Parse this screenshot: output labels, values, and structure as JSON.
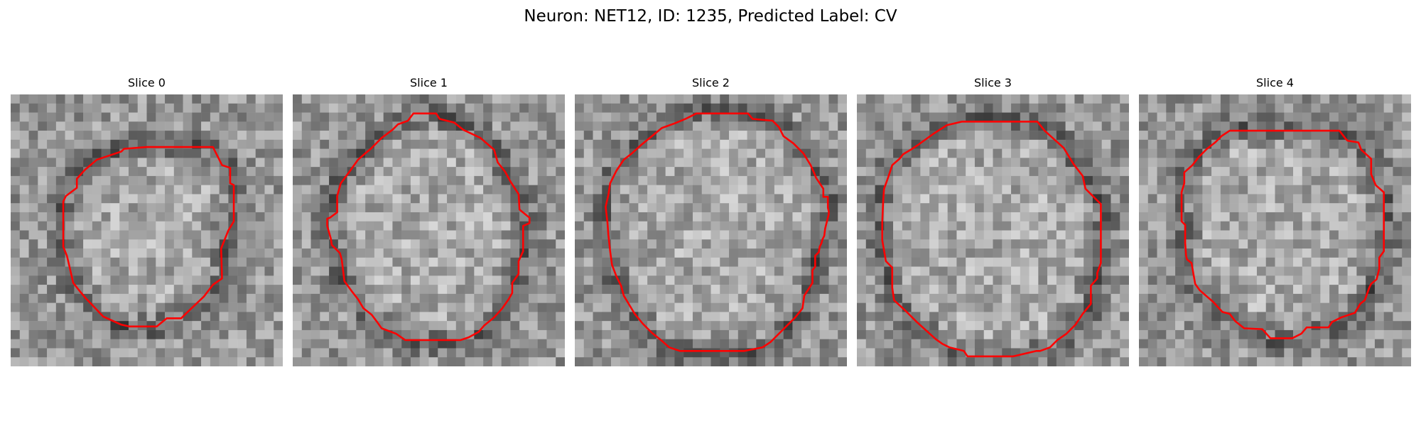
{
  "figure": {
    "title": "Neuron: NET12, ID: 1235, Predicted Label: CV"
  },
  "colors": {
    "contour": "#ff0000",
    "colormap": "gray"
  },
  "image_grid": {
    "rows": 30,
    "cols": 30
  },
  "slices": [
    {
      "title": "Slice 0",
      "contour": [
        [
          15,
          5.8
        ],
        [
          22.3,
          5.8
        ],
        [
          23.3,
          7.8
        ],
        [
          24.2,
          8.1
        ],
        [
          24.2,
          9.8
        ],
        [
          24.6,
          10
        ],
        [
          24.6,
          14
        ],
        [
          24,
          15
        ],
        [
          23.2,
          17
        ],
        [
          23.3,
          20.3
        ],
        [
          22.3,
          21
        ],
        [
          21.3,
          22.3
        ],
        [
          19.3,
          24.2
        ],
        [
          18.8,
          24.7
        ],
        [
          17.2,
          24.7
        ],
        [
          16.1,
          25.6
        ],
        [
          13.1,
          25.6
        ],
        [
          12.2,
          25.4
        ],
        [
          10.2,
          24.5
        ],
        [
          8.2,
          22.4
        ],
        [
          7.7,
          21.8
        ],
        [
          6.9,
          20.8
        ],
        [
          6.3,
          18.2
        ],
        [
          6.2,
          17.8
        ],
        [
          5.8,
          16.8
        ],
        [
          5.8,
          15.2
        ],
        [
          5.8,
          11.8
        ],
        [
          6.1,
          11.2
        ],
        [
          7.3,
          10.3
        ],
        [
          7.3,
          9.3
        ],
        [
          8.2,
          8.3
        ],
        [
          9.5,
          7.2
        ],
        [
          10.7,
          6.8
        ],
        [
          12.2,
          6.3
        ],
        [
          12.5,
          6
        ]
      ]
    },
    {
      "title": "Slice 1",
      "contour": [
        [
          13.3,
          2.1
        ],
        [
          15.8,
          2.1
        ],
        [
          16.2,
          2.7
        ],
        [
          17.8,
          3.1
        ],
        [
          18.8,
          3.9
        ],
        [
          20.7,
          4.8
        ],
        [
          22.2,
          6.1
        ],
        [
          22.6,
          7.5
        ],
        [
          23.4,
          8.5
        ],
        [
          24,
          9.6
        ],
        [
          24.9,
          11
        ],
        [
          25,
          12.7
        ],
        [
          26.1,
          13.6
        ],
        [
          26.1,
          14.2
        ],
        [
          25.4,
          14.5
        ],
        [
          25.4,
          17.3
        ],
        [
          24.9,
          18.4
        ],
        [
          24.9,
          19.8
        ],
        [
          24.2,
          20.8
        ],
        [
          24.2,
          21.9
        ],
        [
          23.8,
          22.6
        ],
        [
          23.1,
          23.6
        ],
        [
          22.2,
          24.6
        ],
        [
          21.1,
          25.5
        ],
        [
          20.5,
          26.2
        ],
        [
          19.4,
          26.8
        ],
        [
          18.5,
          27.1
        ],
        [
          12.4,
          27.1
        ],
        [
          11.4,
          26.4
        ],
        [
          9.8,
          25.8
        ],
        [
          9.3,
          25.1
        ],
        [
          8.7,
          24.3
        ],
        [
          7.8,
          23.6
        ],
        [
          7.2,
          22.6
        ],
        [
          6.5,
          21.7
        ],
        [
          5.7,
          20.6
        ],
        [
          5.4,
          18.2
        ],
        [
          5.2,
          17.5
        ],
        [
          4.3,
          16.6
        ],
        [
          4.2,
          15.9
        ],
        [
          3.8,
          14.5
        ],
        [
          3.8,
          13.7
        ],
        [
          4.1,
          13.6
        ],
        [
          4.9,
          13
        ],
        [
          4.9,
          11.2
        ],
        [
          5.3,
          9.8
        ],
        [
          6.2,
          8.6
        ],
        [
          7.2,
          7.2
        ],
        [
          8,
          6.5
        ],
        [
          8.6,
          6
        ],
        [
          9,
          5.6
        ],
        [
          9.8,
          4.8
        ],
        [
          11,
          3.9
        ],
        [
          11.6,
          3.3
        ],
        [
          12.7,
          2.9
        ]
      ]
    },
    {
      "title": "Slice 2",
      "contour": [
        [
          13.4,
          2.1
        ],
        [
          19.1,
          2.1
        ],
        [
          19.6,
          2.7
        ],
        [
          21.8,
          2.9
        ],
        [
          22.5,
          3.6
        ],
        [
          23,
          4.6
        ],
        [
          24.1,
          5.4
        ],
        [
          25.2,
          6.5
        ],
        [
          26,
          7.8
        ],
        [
          26.4,
          8.7
        ],
        [
          26.6,
          9.2
        ],
        [
          27.4,
          10.4
        ],
        [
          27.4,
          11.3
        ],
        [
          27.9,
          11.3
        ],
        [
          27.9,
          12.5
        ],
        [
          28,
          12.9
        ],
        [
          28,
          13.2
        ],
        [
          27.6,
          14.8
        ],
        [
          27.5,
          15.6
        ],
        [
          27.3,
          16
        ],
        [
          27.2,
          16.4
        ],
        [
          27,
          16.8
        ],
        [
          26.9,
          17.4
        ],
        [
          26.5,
          17.8
        ],
        [
          26.5,
          19
        ],
        [
          26.2,
          19.4
        ],
        [
          26.2,
          20.8
        ],
        [
          25.3,
          22.2
        ],
        [
          25.1,
          23.6
        ],
        [
          24.3,
          24.6
        ],
        [
          23.5,
          25.4
        ],
        [
          22.6,
          26.3
        ],
        [
          21.6,
          27.3
        ],
        [
          20.7,
          27.9
        ],
        [
          18.7,
          28.3
        ],
        [
          16.8,
          28.3
        ],
        [
          15.6,
          28.3
        ],
        [
          14.8,
          28.3
        ],
        [
          11.6,
          28.3
        ],
        [
          10.4,
          27.9
        ],
        [
          9.5,
          27.1
        ],
        [
          8.5,
          26.3
        ],
        [
          7.5,
          25.3
        ],
        [
          6.6,
          24.2
        ],
        [
          5.4,
          22.2
        ],
        [
          5.1,
          21.1
        ],
        [
          4.6,
          20.1
        ],
        [
          4.1,
          18.8
        ],
        [
          3.9,
          17.3
        ],
        [
          3.7,
          15.5
        ],
        [
          3.6,
          14.1
        ],
        [
          3.4,
          12.4
        ],
        [
          3.7,
          11.1
        ],
        [
          3.9,
          9.8
        ],
        [
          4.6,
          8.4
        ],
        [
          5.4,
          7.2
        ],
        [
          6.3,
          6.5
        ],
        [
          7.4,
          5.5
        ],
        [
          8.5,
          4.6
        ],
        [
          9.6,
          3.7
        ],
        [
          11,
          3.2
        ],
        [
          12.2,
          2.7
        ]
      ]
    },
    {
      "title": "Slice 3",
      "contour": [
        [
          11.6,
          3
        ],
        [
          19.9,
          3
        ],
        [
          20.7,
          4
        ],
        [
          22.8,
          5.9
        ],
        [
          23.9,
          7.7
        ],
        [
          24.9,
          9
        ],
        [
          25.2,
          10.4
        ],
        [
          25.9,
          11.1
        ],
        [
          26.9,
          12.1
        ],
        [
          26.9,
          16
        ],
        [
          26.9,
          18.6
        ],
        [
          26.5,
          19.7
        ],
        [
          26.5,
          20.3
        ],
        [
          25.8,
          21.1
        ],
        [
          25.8,
          23.1
        ],
        [
          24.9,
          24.2
        ],
        [
          24.1,
          25.4
        ],
        [
          23.1,
          26.4
        ],
        [
          22.1,
          27.1
        ],
        [
          21.3,
          27.9
        ],
        [
          20.2,
          28.3
        ],
        [
          19.8,
          28.3
        ],
        [
          17.2,
          28.9
        ],
        [
          15.2,
          28.9
        ],
        [
          12.2,
          28.9
        ],
        [
          11.8,
          28.3
        ],
        [
          10.2,
          27.9
        ],
        [
          9.4,
          27.5
        ],
        [
          8.7,
          27
        ],
        [
          7.7,
          26.1
        ],
        [
          6.6,
          25.1
        ],
        [
          5.4,
          23.9
        ],
        [
          4.1,
          22.7
        ],
        [
          3.9,
          21.3
        ],
        [
          3.9,
          19.1
        ],
        [
          3.2,
          18.4
        ],
        [
          3.1,
          17.8
        ],
        [
          2.8,
          16.1
        ],
        [
          2.8,
          14.1
        ],
        [
          2.9,
          11.8
        ],
        [
          3,
          10.4
        ],
        [
          3.4,
          9.3
        ],
        [
          3.9,
          7.8
        ],
        [
          4.7,
          7.1
        ],
        [
          5.1,
          6.6
        ],
        [
          6.1,
          6
        ],
        [
          6.7,
          5.6
        ],
        [
          8.5,
          4.3
        ],
        [
          9.9,
          3.4
        ]
      ]
    },
    {
      "title": "Slice 4",
      "contour": [
        [
          10,
          4
        ],
        [
          22.1,
          4
        ],
        [
          22.8,
          4.9
        ],
        [
          23,
          5.1
        ],
        [
          24.2,
          5.3
        ],
        [
          24.5,
          6.1
        ],
        [
          25.6,
          7.1
        ],
        [
          25.6,
          8.8
        ],
        [
          26.1,
          10
        ],
        [
          27,
          10.8
        ],
        [
          27,
          15.5
        ],
        [
          27,
          17.3
        ],
        [
          26.5,
          18
        ],
        [
          26.5,
          19.2
        ],
        [
          26.2,
          20.4
        ],
        [
          25.6,
          20.9
        ],
        [
          25.4,
          21.3
        ],
        [
          24.9,
          22.7
        ],
        [
          24.4,
          23.1
        ],
        [
          23.8,
          24.1
        ],
        [
          22.3,
          24.6
        ],
        [
          21.3,
          25.1
        ],
        [
          20.9,
          25.7
        ],
        [
          18.5,
          25.7
        ],
        [
          17.9,
          26.4
        ],
        [
          16.9,
          26.9
        ],
        [
          14.5,
          26.9
        ],
        [
          13.6,
          25.9
        ],
        [
          11.6,
          25.8
        ],
        [
          10.6,
          25
        ],
        [
          10,
          24.2
        ],
        [
          9.2,
          24
        ],
        [
          8.2,
          22.9
        ],
        [
          7.5,
          22.3
        ],
        [
          6.7,
          21.6
        ],
        [
          6.2,
          20.9
        ],
        [
          5.8,
          18.6
        ],
        [
          5.3,
          18.2
        ],
        [
          5.2,
          17.8
        ],
        [
          5.1,
          16.4
        ],
        [
          5.1,
          14.4
        ],
        [
          4.7,
          14
        ],
        [
          4.7,
          12.8
        ],
        [
          4.7,
          10.8
        ],
        [
          5,
          9.8
        ],
        [
          5,
          8.6
        ],
        [
          5.9,
          7.8
        ],
        [
          6.6,
          6.9
        ],
        [
          7.5,
          6
        ],
        [
          8.4,
          5.3
        ],
        [
          9.1,
          4.6
        ]
      ]
    }
  ]
}
